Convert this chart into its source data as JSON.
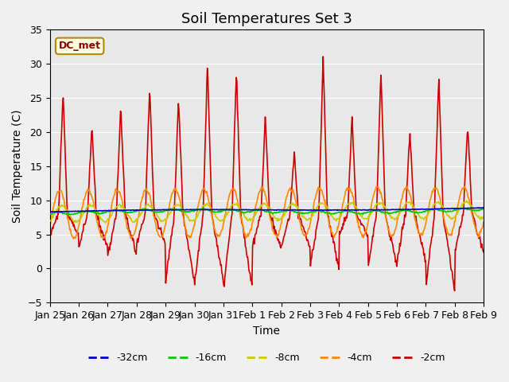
{
  "title": "Soil Temperatures Set 3",
  "xlabel": "Time",
  "ylabel": "Soil Temperature (C)",
  "ylim": [
    -5,
    35
  ],
  "yticks": [
    -5,
    0,
    5,
    10,
    15,
    20,
    25,
    30,
    35
  ],
  "xlabels": [
    "Jan 25",
    "Jan 26",
    "Jan 27",
    "Jan 28",
    "Jan 29",
    "Jan 30",
    "Jan 31",
    "Feb 1",
    "Feb 2",
    "Feb 3",
    "Feb 4",
    "Feb 5",
    "Feb 6",
    "Feb 7",
    "Feb 8",
    "Feb 9"
  ],
  "legend_labels": [
    "-32cm",
    "-16cm",
    "-8cm",
    "-4cm",
    "-2cm"
  ],
  "legend_colors": [
    "#0000cc",
    "#00cc00",
    "#cccc00",
    "#ff8800",
    "#cc0000"
  ],
  "annotation_text": "DC_met",
  "background_color": "#e8e8e8",
  "title_fontsize": 13,
  "axis_fontsize": 10,
  "tick_fontsize": 9,
  "peak_heights": [
    26,
    21,
    24,
    27,
    25,
    30,
    29,
    22,
    17,
    31,
    22,
    29,
    20,
    28,
    21,
    9
  ],
  "trough_depths": [
    5,
    3,
    2,
    3.5,
    -2,
    -2,
    -3,
    3,
    3,
    0,
    5,
    0.5,
    1,
    -3,
    2.5,
    2
  ]
}
